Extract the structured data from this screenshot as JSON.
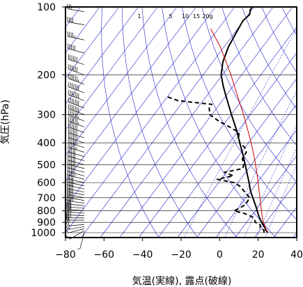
{
  "chart_data": {
    "type": "line",
    "subtype": "skew-t",
    "title": "",
    "xlabel": "気温(実線), 露点(破線)",
    "ylabel": "気圧(hPa)",
    "xlim": [
      -80,
      40
    ],
    "ylim": [
      1050,
      100
    ],
    "yscale": "log",
    "x_ticks": [
      "−80",
      "−60",
      "−40",
      "−20",
      "0",
      "20",
      "40"
    ],
    "x_tick_values": [
      -80,
      -60,
      -40,
      -20,
      0,
      20,
      40
    ],
    "y_ticks": [
      "100",
      "200",
      "300",
      "400",
      "500",
      "600",
      "700",
      "800",
      "900",
      "1000"
    ],
    "y_tick_values": [
      100,
      200,
      300,
      400,
      500,
      600,
      700,
      800,
      900,
      1000
    ],
    "mixing_ratio_labels": [
      "1",
      "5",
      "10",
      "15",
      "20g"
    ],
    "mixing_ratio_values": [
      1,
      5,
      10,
      15,
      20
    ],
    "colors": {
      "temperature": "#000000",
      "dewpoint": "#000000",
      "parcel": "#cc0000",
      "guides": "#2222cc",
      "grid": "#000000"
    },
    "series": [
      {
        "key": "temperature",
        "style": "solid",
        "points": [
          [
            1000,
            25.0
          ],
          [
            975,
            23.0
          ],
          [
            950,
            21.5
          ],
          [
            925,
            19.6
          ],
          [
            900,
            17.8
          ],
          [
            875,
            16.0
          ],
          [
            850,
            14.2
          ],
          [
            825,
            12.6
          ],
          [
            800,
            11.0
          ],
          [
            775,
            9.3
          ],
          [
            750,
            7.5
          ],
          [
            700,
            3.6
          ],
          [
            650,
            -0.5
          ],
          [
            600,
            -4.2
          ],
          [
            550,
            -8.5
          ],
          [
            500,
            -13.2
          ],
          [
            450,
            -18.4
          ],
          [
            400,
            -24.5
          ],
          [
            350,
            -31.3
          ],
          [
            300,
            -39.8
          ],
          [
            250,
            -49.5
          ],
          [
            225,
            -55.0
          ],
          [
            200,
            -60.6
          ],
          [
            175,
            -64.8
          ],
          [
            150,
            -67.8
          ],
          [
            130,
            -69.2
          ],
          [
            115,
            -70.4
          ],
          [
            108,
            -69.3
          ],
          [
            103,
            -70.8
          ],
          [
            100,
            -71.0
          ]
        ]
      },
      {
        "key": "dewpoint",
        "style": "dashed",
        "points": [
          [
            1000,
            23.0
          ],
          [
            975,
            22.0
          ],
          [
            950,
            19.0
          ],
          [
            925,
            18.2
          ],
          [
            900,
            14.5
          ],
          [
            875,
            13.0
          ],
          [
            850,
            10.5
          ],
          [
            825,
            6.0
          ],
          [
            800,
            -1.0
          ],
          [
            775,
            1.0
          ],
          [
            750,
            2.5
          ],
          [
            700,
            2.0
          ],
          [
            650,
            -4.0
          ],
          [
            620,
            -8.0
          ],
          [
            600,
            -12.0
          ],
          [
            580,
            -22.0
          ],
          [
            560,
            -15.0
          ],
          [
            540,
            -21.0
          ],
          [
            520,
            -13.0
          ],
          [
            500,
            -14.0
          ],
          [
            470,
            -17.0
          ],
          [
            440,
            -17.5
          ],
          [
            420,
            -20.0
          ],
          [
            400,
            -24.5
          ],
          [
            380,
            -27.0
          ],
          [
            360,
            -29.0
          ],
          [
            340,
            -36.0
          ],
          [
            320,
            -44.0
          ],
          [
            300,
            -51.0
          ],
          [
            280,
            -54.0
          ],
          [
            270,
            -54.0
          ],
          [
            260,
            -73.0
          ],
          [
            250,
            -80.0
          ]
        ]
      },
      {
        "key": "parcel",
        "style": "solid",
        "points": [
          [
            1000,
            25.0
          ],
          [
            950,
            21.8
          ],
          [
            900,
            18.6
          ],
          [
            850,
            15.9
          ],
          [
            800,
            13.2
          ],
          [
            750,
            10.3
          ],
          [
            700,
            7.3
          ],
          [
            650,
            4.0
          ],
          [
            600,
            0.5
          ],
          [
            550,
            -3.4
          ],
          [
            500,
            -7.8
          ],
          [
            450,
            -12.8
          ],
          [
            400,
            -18.6
          ],
          [
            350,
            -25.5
          ],
          [
            300,
            -33.5
          ],
          [
            250,
            -43.5
          ],
          [
            200,
            -55.5
          ],
          [
            150,
            -72.0
          ],
          [
            125,
            -84.0
          ]
        ]
      }
    ],
    "wind_barbs": [
      [
        1000,
        195,
        5
      ],
      [
        980,
        240,
        10
      ],
      [
        960,
        255,
        12
      ],
      [
        940,
        260,
        15
      ],
      [
        920,
        265,
        18
      ],
      [
        900,
        270,
        20
      ],
      [
        880,
        270,
        22
      ],
      [
        860,
        270,
        24
      ],
      [
        840,
        272,
        26
      ],
      [
        820,
        274,
        28
      ],
      [
        800,
        275,
        30
      ],
      [
        780,
        275,
        30
      ],
      [
        760,
        276,
        32
      ],
      [
        740,
        278,
        34
      ],
      [
        720,
        280,
        35
      ],
      [
        700,
        280,
        36
      ],
      [
        680,
        280,
        36
      ],
      [
        660,
        280,
        38
      ],
      [
        640,
        282,
        40
      ],
      [
        620,
        282,
        40
      ],
      [
        600,
        282,
        42
      ],
      [
        580,
        284,
        44
      ],
      [
        560,
        284,
        44
      ],
      [
        540,
        285,
        46
      ],
      [
        520,
        285,
        48
      ],
      [
        500,
        285,
        50
      ],
      [
        480,
        286,
        50
      ],
      [
        460,
        286,
        52
      ],
      [
        440,
        287,
        55
      ],
      [
        420,
        288,
        56
      ],
      [
        400,
        288,
        58
      ],
      [
        380,
        288,
        60
      ],
      [
        360,
        289,
        62
      ],
      [
        340,
        290,
        64
      ],
      [
        320,
        290,
        66
      ],
      [
        300,
        290,
        68
      ],
      [
        280,
        290,
        70
      ],
      [
        260,
        290,
        70
      ],
      [
        240,
        290,
        68
      ],
      [
        220,
        290,
        65
      ],
      [
        200,
        290,
        62
      ],
      [
        180,
        288,
        58
      ],
      [
        160,
        285,
        52
      ],
      [
        140,
        282,
        45
      ],
      [
        120,
        280,
        38
      ],
      [
        105,
        280,
        30
      ]
    ]
  }
}
